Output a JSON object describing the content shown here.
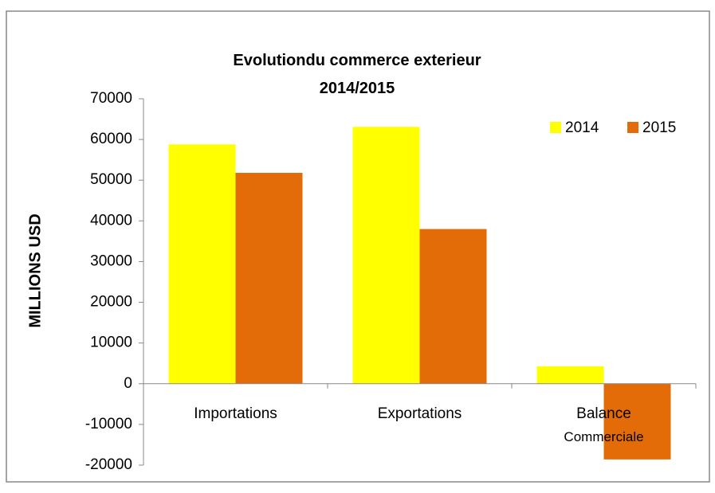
{
  "chart_data": {
    "type": "bar",
    "title": "Evolutiondu commerce exterieur\n2014/2015",
    "y_label": "MILLIONS USD",
    "categories": [
      "Importations",
      "Exportations",
      "Balance\nCommerciale"
    ],
    "series": [
      {
        "name": "2014",
        "color": "#ffff00",
        "values": [
          58800,
          63100,
          4300
        ]
      },
      {
        "name": "2015",
        "color": "#e36c09",
        "values": [
          51800,
          38000,
          -18600
        ]
      }
    ],
    "ylim": [
      -20000,
      70000
    ],
    "yticks": [
      -20000,
      -10000,
      0,
      10000,
      20000,
      30000,
      40000,
      50000,
      60000,
      70000
    ],
    "grid": false,
    "legend": "top-right"
  }
}
